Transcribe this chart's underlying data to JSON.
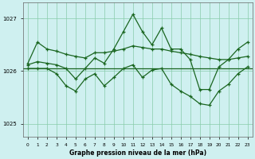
{
  "title": "Graphe pression niveau de la mer (hPa)",
  "bg_color": "#cff0f0",
  "line_color": "#1a6620",
  "xlim": [
    -0.5,
    23.5
  ],
  "ylim": [
    1024.75,
    1027.3
  ],
  "yticks": [
    1025,
    1026,
    1027
  ],
  "xticks": [
    0,
    1,
    2,
    3,
    4,
    5,
    6,
    7,
    8,
    9,
    10,
    11,
    12,
    13,
    14,
    15,
    16,
    17,
    18,
    19,
    20,
    21,
    22,
    23
  ],
  "line_upper_x": [
    0,
    1,
    2,
    3,
    4,
    5,
    6,
    7,
    8,
    9,
    10,
    11,
    12,
    13,
    14,
    15,
    16,
    17,
    18,
    19,
    20,
    21,
    22,
    23
  ],
  "line_upper_y": [
    1026.15,
    1026.55,
    1026.42,
    1026.38,
    1026.32,
    1026.28,
    1026.25,
    1026.35,
    1026.35,
    1026.38,
    1026.42,
    1026.48,
    1026.45,
    1026.42,
    1026.42,
    1026.38,
    1026.35,
    1026.32,
    1026.28,
    1026.25,
    1026.22,
    1026.22,
    1026.25,
    1026.28
  ],
  "line_flat_y": 1026.05,
  "line_spike_x": [
    0,
    1,
    2,
    3,
    4,
    5,
    6,
    7,
    8,
    9,
    10,
    11,
    12,
    13,
    14,
    15,
    16,
    17,
    18,
    19,
    20,
    21,
    22,
    23
  ],
  "line_spike_y": [
    1026.12,
    1026.18,
    1026.15,
    1026.12,
    1026.05,
    1025.85,
    1026.05,
    1026.25,
    1026.15,
    1026.42,
    1026.75,
    1027.08,
    1026.75,
    1026.5,
    1026.82,
    1026.42,
    1026.42,
    1026.22,
    1025.65,
    1025.65,
    1026.08,
    1026.22,
    1026.42,
    1026.55
  ],
  "line_lower_x": [
    0,
    1,
    2,
    3,
    4,
    5,
    6,
    7,
    8,
    9,
    10,
    11,
    12,
    13,
    14,
    15,
    16,
    17,
    18,
    19,
    20,
    21,
    22,
    23
  ],
  "line_lower_y": [
    1026.05,
    1026.05,
    1026.05,
    1025.95,
    1025.72,
    1025.62,
    1025.85,
    1025.95,
    1025.72,
    1025.88,
    1026.05,
    1026.12,
    1025.88,
    1026.02,
    1026.05,
    1025.75,
    1025.62,
    1025.52,
    1025.38,
    1025.35,
    1025.62,
    1025.75,
    1025.95,
    1026.08
  ]
}
